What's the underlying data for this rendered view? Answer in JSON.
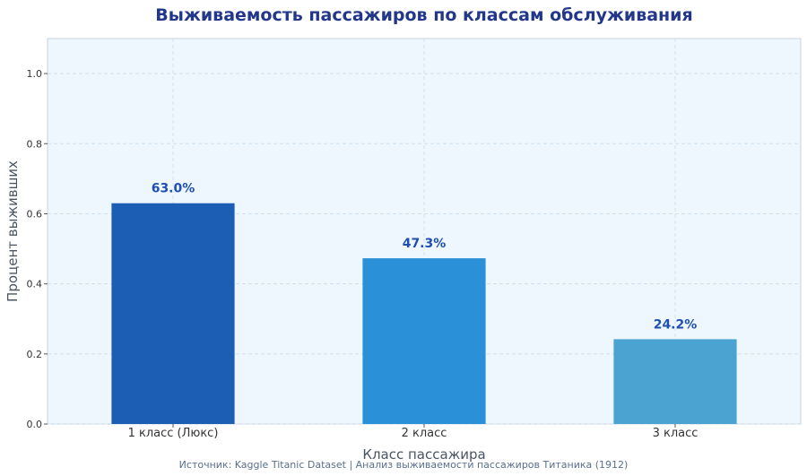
{
  "chart_data": {
    "type": "bar",
    "title": "Выживаемость пассажиров по классам обслуживания",
    "xlabel": "Класс пассажира",
    "ylabel": "Процент выживших",
    "categories": [
      "1 класс (Люкс)",
      "2 класс",
      "3 класс"
    ],
    "values": [
      0.63,
      0.473,
      0.242
    ],
    "data_labels": [
      "63.0%",
      "47.3%",
      "24.2%"
    ],
    "colors": [
      "#1b5eb4",
      "#2a91d9",
      "#4aa3d1"
    ],
    "ylim": [
      0,
      1.1
    ],
    "yticks": [
      "0.0",
      "0.2",
      "0.4",
      "0.6",
      "0.8",
      "1.0"
    ],
    "grid": true,
    "source": "Источник: Kaggle Titanic Dataset | Анализ выживаемости пассажиров Титаника (1912)"
  }
}
